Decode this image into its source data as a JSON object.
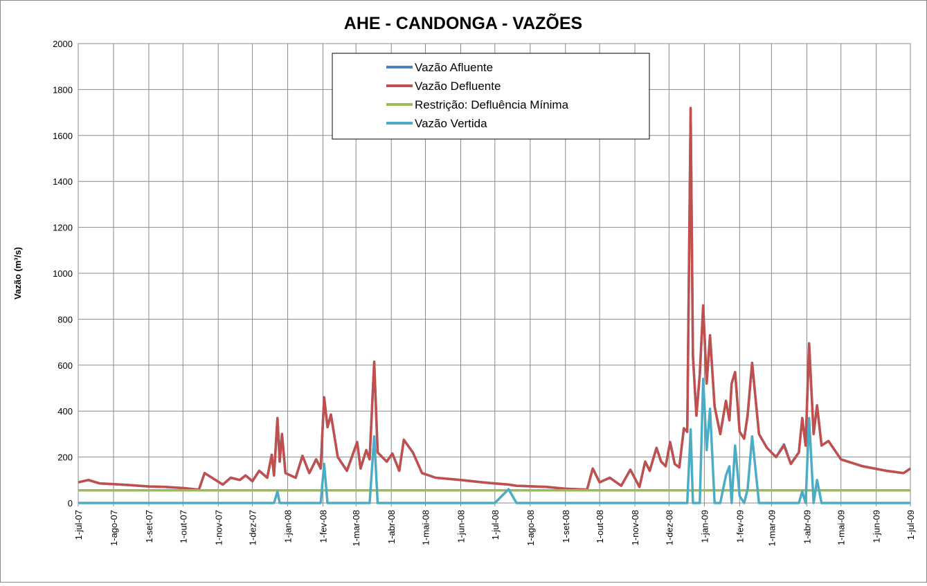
{
  "chart_data": {
    "type": "line",
    "title": "AHE - CANDONGA - VAZÕES",
    "y_label": "Vazão (m³/s)",
    "xlim": [
      "2007-07-01",
      "2009-07-01"
    ],
    "ylim": [
      0,
      2000
    ],
    "yticks": [
      0,
      200,
      400,
      600,
      800,
      1000,
      1200,
      1400,
      1600,
      1800,
      2000
    ],
    "xticks": [
      {
        "value": "2007-07-01",
        "label": "1-jul-07"
      },
      {
        "value": "2007-08-01",
        "label": "1-ago-07"
      },
      {
        "value": "2007-09-01",
        "label": "1-set-07"
      },
      {
        "value": "2007-10-01",
        "label": "1-out-07"
      },
      {
        "value": "2007-11-01",
        "label": "1-nov-07"
      },
      {
        "value": "2007-12-01",
        "label": "1-dez-07"
      },
      {
        "value": "2008-01-01",
        "label": "1-jan-08"
      },
      {
        "value": "2008-02-01",
        "label": "1-fev-08"
      },
      {
        "value": "2008-03-01",
        "label": "1-mar-08"
      },
      {
        "value": "2008-04-01",
        "label": "1-abr-08"
      },
      {
        "value": "2008-05-01",
        "label": "1-mai-08"
      },
      {
        "value": "2008-06-01",
        "label": "1-jun-08"
      },
      {
        "value": "2008-07-01",
        "label": "1-jul-08"
      },
      {
        "value": "2008-08-01",
        "label": "1-ago-08"
      },
      {
        "value": "2008-09-01",
        "label": "1-set-08"
      },
      {
        "value": "2008-10-01",
        "label": "1-out-08"
      },
      {
        "value": "2008-11-01",
        "label": "1-nov-08"
      },
      {
        "value": "2008-12-01",
        "label": "1-dez-08"
      },
      {
        "value": "2009-01-01",
        "label": "1-jan-09"
      },
      {
        "value": "2009-02-01",
        "label": "1-fev-09"
      },
      {
        "value": "2009-03-01",
        "label": "1-mar-09"
      },
      {
        "value": "2009-04-01",
        "label": "1-abr-09"
      },
      {
        "value": "2009-05-01",
        "label": "1-mai-09"
      },
      {
        "value": "2009-06-01",
        "label": "1-jun-09"
      },
      {
        "value": "2009-07-01",
        "label": "1-jul-09"
      }
    ],
    "grid": true,
    "legend": "top",
    "x": [
      "2007-07-01",
      "2007-07-10",
      "2007-07-20",
      "2007-08-01",
      "2007-08-15",
      "2007-09-01",
      "2007-09-15",
      "2007-10-01",
      "2007-10-15",
      "2007-10-20",
      "2007-10-28",
      "2007-11-05",
      "2007-11-12",
      "2007-11-20",
      "2007-11-25",
      "2007-12-01",
      "2007-12-07",
      "2007-12-14",
      "2007-12-18",
      "2007-12-20",
      "2007-12-23",
      "2007-12-25",
      "2007-12-27",
      "2007-12-30",
      "2008-01-08",
      "2008-01-14",
      "2008-01-20",
      "2008-01-26",
      "2008-01-30",
      "2008-02-02",
      "2008-02-05",
      "2008-02-08",
      "2008-02-14",
      "2008-02-22",
      "2008-03-02",
      "2008-03-05",
      "2008-03-10",
      "2008-03-13",
      "2008-03-17",
      "2008-03-20",
      "2008-03-28",
      "2008-04-02",
      "2008-04-08",
      "2008-04-12",
      "2008-04-20",
      "2008-04-28",
      "2008-05-10",
      "2008-06-01",
      "2008-06-20",
      "2008-07-01",
      "2008-07-13",
      "2008-07-20",
      "2008-08-15",
      "2008-09-01",
      "2008-09-20",
      "2008-09-25",
      "2008-10-01",
      "2008-10-10",
      "2008-10-20",
      "2008-10-28",
      "2008-11-05",
      "2008-11-10",
      "2008-11-14",
      "2008-11-20",
      "2008-11-24",
      "2008-11-28",
      "2008-12-02",
      "2008-12-06",
      "2008-12-10",
      "2008-12-14",
      "2008-12-17",
      "2008-12-20",
      "2008-12-22",
      "2008-12-25",
      "2008-12-28",
      "2008-12-31",
      "2009-01-03",
      "2009-01-06",
      "2009-01-10",
      "2009-01-15",
      "2009-01-20",
      "2009-01-23",
      "2009-01-25",
      "2009-01-28",
      "2009-02-01",
      "2009-02-05",
      "2009-02-08",
      "2009-02-12",
      "2009-02-18",
      "2009-02-25",
      "2009-03-05",
      "2009-03-12",
      "2009-03-18",
      "2009-03-25",
      "2009-03-28",
      "2009-03-31",
      "2009-04-03",
      "2009-04-07",
      "2009-04-10",
      "2009-04-14",
      "2009-04-20",
      "2009-05-01",
      "2009-05-20",
      "2009-06-10",
      "2009-06-25",
      "2009-07-01"
    ],
    "series": [
      {
        "name": "Vazão Afluente",
        "color": "#4f81bd",
        "values": [
          90,
          100,
          85,
          82,
          78,
          72,
          70,
          65,
          58,
          130,
          105,
          80,
          110,
          100,
          120,
          95,
          140,
          110,
          210,
          120,
          370,
          180,
          300,
          130,
          110,
          205,
          130,
          190,
          150,
          460,
          330,
          385,
          200,
          140,
          265,
          150,
          230,
          190,
          612,
          220,
          180,
          215,
          140,
          275,
          220,
          130,
          110,
          100,
          90,
          85,
          80,
          75,
          70,
          62,
          58,
          150,
          90,
          110,
          75,
          145,
          70,
          180,
          140,
          240,
          180,
          160,
          265,
          170,
          155,
          325,
          310,
          1715,
          640,
          380,
          560,
          860,
          520,
          730,
          420,
          300,
          445,
          360,
          520,
          570,
          310,
          280,
          385,
          610,
          300,
          240,
          200,
          255,
          170,
          220,
          370,
          250,
          695,
          300,
          425,
          250,
          270,
          190,
          160,
          140,
          130,
          150
        ]
      },
      {
        "name": "Vazão Defluente",
        "color": "#c0504d",
        "values": [
          90,
          100,
          85,
          82,
          78,
          72,
          70,
          65,
          58,
          130,
          105,
          80,
          110,
          100,
          120,
          95,
          140,
          110,
          210,
          120,
          370,
          180,
          300,
          130,
          110,
          205,
          130,
          190,
          150,
          460,
          330,
          385,
          200,
          140,
          265,
          150,
          230,
          190,
          615,
          220,
          180,
          215,
          140,
          275,
          220,
          130,
          110,
          100,
          90,
          85,
          80,
          75,
          70,
          62,
          58,
          150,
          90,
          110,
          75,
          145,
          70,
          180,
          140,
          240,
          180,
          160,
          265,
          170,
          155,
          325,
          310,
          1720,
          640,
          380,
          560,
          860,
          520,
          730,
          420,
          300,
          445,
          360,
          520,
          570,
          310,
          280,
          380,
          610,
          300,
          240,
          200,
          250,
          170,
          220,
          370,
          250,
          695,
          300,
          425,
          250,
          270,
          190,
          160,
          140,
          130,
          150
        ]
      },
      {
        "name": "Restrição: Defluência Mínima",
        "color": "#9bbb59",
        "x": [
          "2007-07-01",
          "2009-07-01"
        ],
        "values": [
          55,
          55
        ]
      },
      {
        "name": "Vazão Vertida",
        "color": "#4bacc6",
        "values": [
          0,
          0,
          0,
          0,
          0,
          0,
          0,
          0,
          0,
          0,
          0,
          0,
          0,
          0,
          0,
          0,
          0,
          0,
          0,
          0,
          50,
          0,
          0,
          0,
          0,
          0,
          0,
          0,
          0,
          170,
          0,
          0,
          0,
          0,
          0,
          0,
          0,
          0,
          290,
          0,
          0,
          0,
          0,
          0,
          0,
          0,
          0,
          0,
          0,
          0,
          60,
          0,
          0,
          0,
          0,
          0,
          0,
          0,
          0,
          0,
          0,
          0,
          0,
          0,
          0,
          0,
          0,
          0,
          0,
          0,
          0,
          320,
          0,
          0,
          0,
          540,
          230,
          410,
          0,
          0,
          120,
          160,
          0,
          250,
          30,
          0,
          60,
          290,
          0,
          0,
          0,
          0,
          0,
          0,
          50,
          0,
          370,
          0,
          100,
          0,
          0,
          0,
          0,
          0,
          0,
          0
        ]
      }
    ]
  }
}
